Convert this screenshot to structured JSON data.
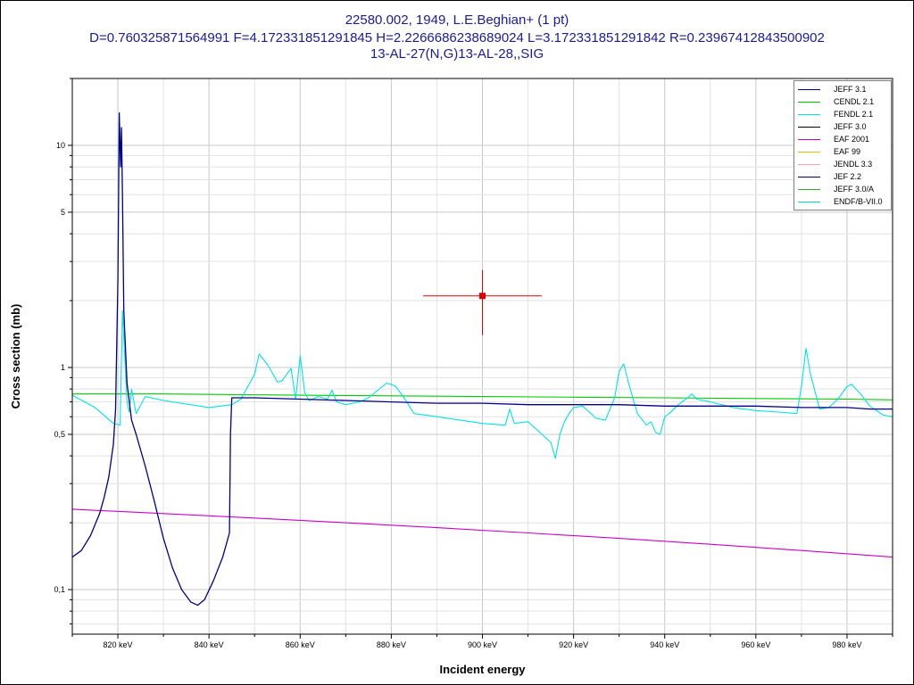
{
  "title": {
    "line1": "22580.002, 1949, L.E.Beghian+ (1 pt)",
    "line2": "D=0.760325871564991 F=4.172331851291845 H=2.2266686238689024 L=3.172331851291842 R=0.23967412843500902",
    "line3": "13-AL-27(N,G)13-AL-28,,SIG"
  },
  "chart_data": {
    "type": "line",
    "title": "22580.002, 1949, L.E.Beghian+ (1 pt)",
    "xlabel": "Incident energy",
    "ylabel": "Cross section (mb)",
    "xlim": [
      810,
      990
    ],
    "ylim": [
      0.063,
      20
    ],
    "y_scale": "log",
    "grid": true,
    "legend_position": "top-right",
    "x_ticks": [
      {
        "value": 820,
        "label": "820 keV"
      },
      {
        "value": 840,
        "label": "840 keV"
      },
      {
        "value": 860,
        "label": "860 keV"
      },
      {
        "value": 880,
        "label": "880 keV"
      },
      {
        "value": 900,
        "label": "900 keV"
      },
      {
        "value": 920,
        "label": "920 keV"
      },
      {
        "value": 940,
        "label": "940 keV"
      },
      {
        "value": 960,
        "label": "960 keV"
      },
      {
        "value": 980,
        "label": "980 keV"
      }
    ],
    "y_ticks": [
      {
        "value": 0.1,
        "label": "0,1"
      },
      {
        "value": 0.5,
        "label": "0,5"
      },
      {
        "value": 1,
        "label": "1"
      },
      {
        "value": 5,
        "label": "5"
      },
      {
        "value": 10,
        "label": "10"
      }
    ],
    "series": [
      {
        "name": "JEFF 3.1",
        "color": "#00008b",
        "x": [
          810,
          812,
          814,
          816,
          817,
          818,
          819,
          819.5,
          820,
          820.3,
          820.6,
          820.8,
          821,
          821.3,
          822,
          823,
          824,
          826,
          828,
          830,
          832,
          834,
          836,
          837.5,
          839,
          841,
          843,
          844.5,
          844.7,
          845,
          850,
          860,
          870,
          880,
          890,
          900,
          910,
          920,
          930,
          940,
          950,
          960,
          970,
          980,
          985,
          990
        ],
        "y": [
          0.14,
          0.15,
          0.175,
          0.22,
          0.26,
          0.32,
          0.45,
          0.65,
          2.5,
          14,
          8,
          12,
          6,
          1.8,
          0.85,
          0.58,
          0.5,
          0.36,
          0.25,
          0.17,
          0.125,
          0.1,
          0.088,
          0.085,
          0.09,
          0.11,
          0.14,
          0.18,
          0.5,
          0.73,
          0.73,
          0.72,
          0.71,
          0.7,
          0.69,
          0.69,
          0.68,
          0.68,
          0.68,
          0.67,
          0.67,
          0.67,
          0.66,
          0.66,
          0.65,
          0.65
        ]
      },
      {
        "name": "CENDL 2.1",
        "color": "#00cc00",
        "x": [
          810,
          830,
          845,
          860,
          880,
          900,
          920,
          940,
          960,
          980,
          990
        ],
        "y": [
          0.76,
          0.76,
          0.755,
          0.75,
          0.745,
          0.74,
          0.735,
          0.73,
          0.725,
          0.72,
          0.715
        ]
      },
      {
        "name": "FENDL 2.1",
        "color": "#00e5e5",
        "x": [
          810,
          815,
          819,
          820.5,
          821,
          822,
          822.5,
          823,
          824,
          826,
          830,
          840,
          845,
          847,
          850,
          851,
          853,
          855,
          856,
          858,
          859,
          860,
          861,
          862,
          864,
          866,
          867,
          868,
          870,
          873,
          875,
          878,
          879,
          880,
          881,
          883,
          885,
          890,
          900,
          905,
          906,
          907,
          910,
          915,
          916,
          917,
          918,
          919,
          920,
          922,
          925,
          927,
          929,
          930,
          931,
          932,
          934,
          936,
          937,
          938,
          939,
          940,
          941,
          943,
          945,
          946,
          947,
          950,
          955,
          960,
          965,
          969,
          970,
          971,
          972,
          974,
          976,
          978,
          980,
          981,
          983,
          985,
          988,
          990
        ],
        "y": [
          0.75,
          0.66,
          0.56,
          0.55,
          1.8,
          0.7,
          0.63,
          0.8,
          0.62,
          0.74,
          0.71,
          0.66,
          0.68,
          0.72,
          0.93,
          1.15,
          1.02,
          0.86,
          0.87,
          0.99,
          0.72,
          1.13,
          0.77,
          0.71,
          0.74,
          0.72,
          0.79,
          0.7,
          0.68,
          0.7,
          0.73,
          0.82,
          0.85,
          0.84,
          0.82,
          0.72,
          0.62,
          0.6,
          0.56,
          0.55,
          0.65,
          0.56,
          0.57,
          0.46,
          0.39,
          0.5,
          0.57,
          0.62,
          0.66,
          0.67,
          0.59,
          0.58,
          0.73,
          0.96,
          1.04,
          0.86,
          0.62,
          0.55,
          0.57,
          0.51,
          0.5,
          0.6,
          0.62,
          0.68,
          0.73,
          0.76,
          0.72,
          0.7,
          0.66,
          0.64,
          0.63,
          0.62,
          0.82,
          1.22,
          0.93,
          0.65,
          0.66,
          0.72,
          0.82,
          0.84,
          0.76,
          0.67,
          0.61,
          0.6
        ]
      },
      {
        "name": "JEFF 3.0",
        "color": "#000000",
        "x": [],
        "y": []
      },
      {
        "name": "EAF 2001",
        "color": "#cc00cc",
        "x": [
          810,
          830,
          850,
          870,
          890,
          910,
          930,
          950,
          970,
          990
        ],
        "y": [
          0.23,
          0.22,
          0.21,
          0.2,
          0.19,
          0.18,
          0.17,
          0.16,
          0.15,
          0.14
        ]
      },
      {
        "name": "EAF 99",
        "color": "#e5c000",
        "x": [],
        "y": []
      },
      {
        "name": "JENDL 3.3",
        "color": "#ffa0b0",
        "x": [],
        "y": []
      },
      {
        "name": "JEF 2.2",
        "color": "#000066",
        "x": [],
        "y": []
      },
      {
        "name": "JEFF 3.0/A",
        "color": "#33aa33",
        "x": [],
        "y": []
      },
      {
        "name": "ENDF/B-VII.0",
        "color": "#00d5d5",
        "x": [],
        "y": []
      }
    ],
    "points": [
      {
        "name": "22580.002",
        "x": 900,
        "y": 2.1,
        "x_err": 13,
        "y_err_low": 0.7,
        "y_err_high": 0.65,
        "color": "#e00000"
      }
    ]
  }
}
